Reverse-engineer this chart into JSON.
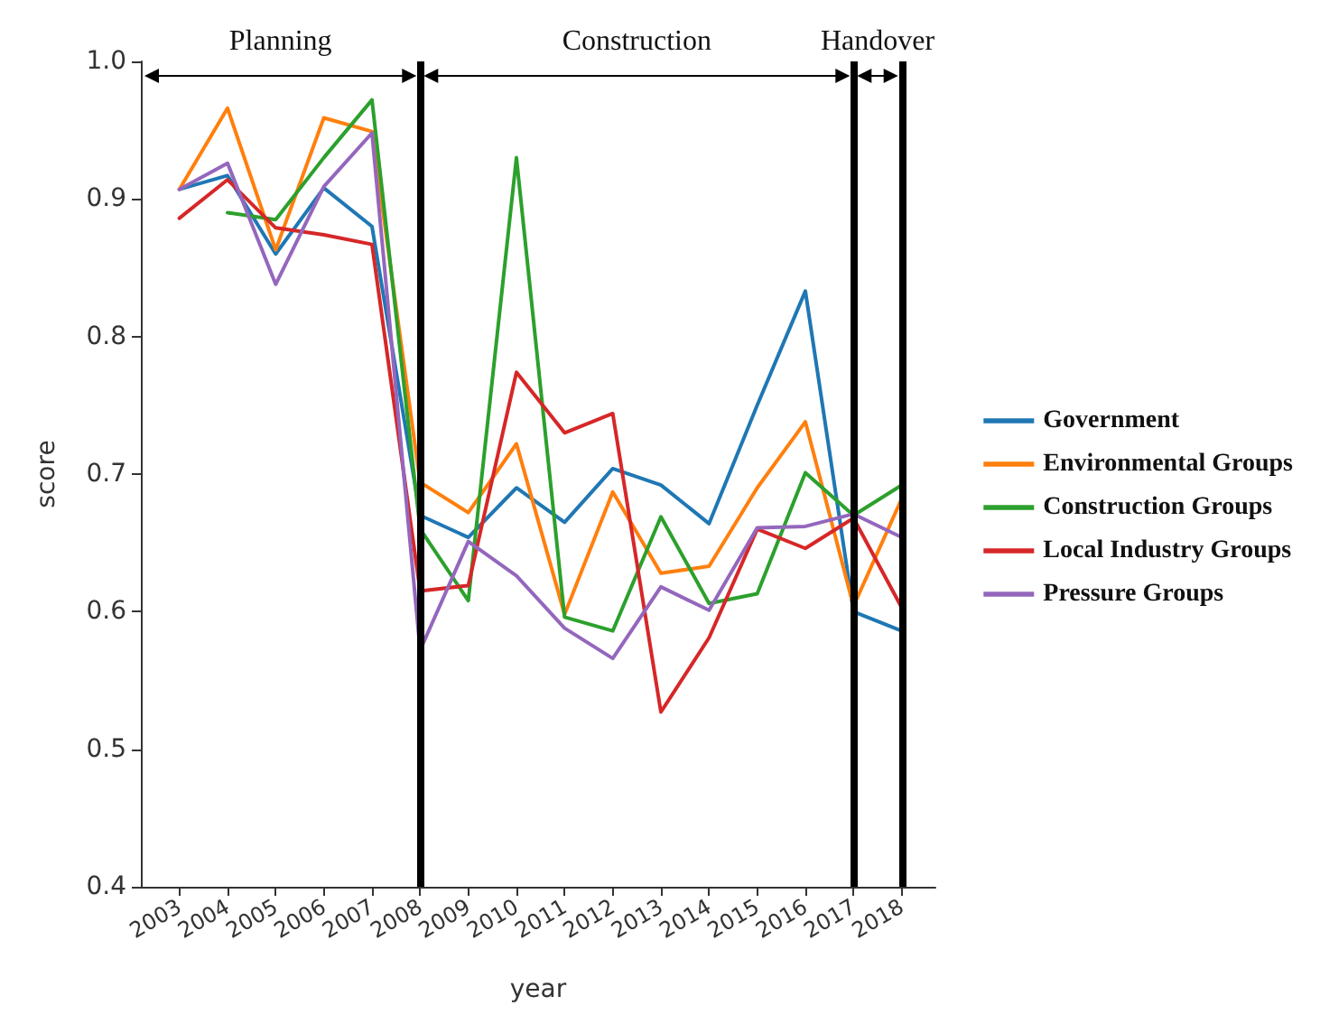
{
  "chart_data": {
    "type": "line",
    "xlabel": "year",
    "ylabel": "score",
    "x": [
      2003,
      2004,
      2005,
      2006,
      2007,
      2008,
      2009,
      2010,
      2011,
      2012,
      2013,
      2014,
      2015,
      2016,
      2017,
      2018
    ],
    "xlim": [
      2002.2,
      2018.7
    ],
    "xticks": [
      2003,
      2004,
      2005,
      2006,
      2007,
      2008,
      2009,
      2010,
      2011,
      2012,
      2013,
      2014,
      2015,
      2016,
      2017,
      2018
    ],
    "ylim": [
      0.4,
      1.0
    ],
    "yticks": [
      {
        "value": 0.4,
        "label": "0.4"
      },
      {
        "value": 0.5,
        "label": "0.5"
      },
      {
        "value": 0.6,
        "label": "0.6"
      },
      {
        "value": 0.7,
        "label": "0.7"
      },
      {
        "value": 0.8,
        "label": "0.8"
      },
      {
        "value": 0.9,
        "label": "0.9"
      },
      {
        "value": 1.0,
        "label": "1.0"
      }
    ],
    "grid": false,
    "legend": "right",
    "marker": "none",
    "line_style": "solid",
    "series": [
      {
        "name": "Government",
        "color": "#1f77b4",
        "values": [
          0.907,
          0.917,
          0.86,
          0.908,
          0.88,
          0.67,
          0.654,
          0.69,
          0.665,
          0.704,
          0.692,
          0.664,
          0.75,
          0.833,
          0.6,
          0.586
        ]
      },
      {
        "name": "Environmental Groups",
        "color": "#ff7f0e",
        "values": [
          0.907,
          0.966,
          0.863,
          0.959,
          0.949,
          0.694,
          0.672,
          0.722,
          0.598,
          0.687,
          0.628,
          0.633,
          0.69,
          0.738,
          0.604,
          0.682
        ]
      },
      {
        "name": "Construction Groups",
        "color": "#2ca02c",
        "values": [
          null,
          0.89,
          0.885,
          0.93,
          0.972,
          0.66,
          0.608,
          0.93,
          0.596,
          0.586,
          0.669,
          0.606,
          0.613,
          0.701,
          0.67,
          0.692
        ]
      },
      {
        "name": "Local Industry Groups",
        "color": "#d62728",
        "values": [
          0.886,
          0.914,
          0.879,
          0.874,
          0.867,
          0.615,
          0.619,
          0.774,
          0.73,
          0.744,
          0.527,
          0.581,
          0.66,
          0.646,
          0.668,
          0.603
        ]
      },
      {
        "name": "Pressure Groups",
        "color": "#9467bd",
        "values": [
          0.907,
          0.926,
          0.838,
          0.909,
          0.948,
          0.572,
          0.651,
          0.626,
          0.588,
          0.566,
          0.618,
          0.601,
          0.661,
          0.662,
          0.671,
          0.654
        ]
      }
    ],
    "ref_lines": [
      {
        "axis": "x",
        "value": 2008,
        "color": "#000000"
      },
      {
        "axis": "x",
        "value": 2017,
        "color": "#000000"
      },
      {
        "axis": "x",
        "value": 2018,
        "color": "#000000"
      }
    ],
    "annotations": [
      "Planning",
      "Construction",
      "Handover"
    ]
  }
}
